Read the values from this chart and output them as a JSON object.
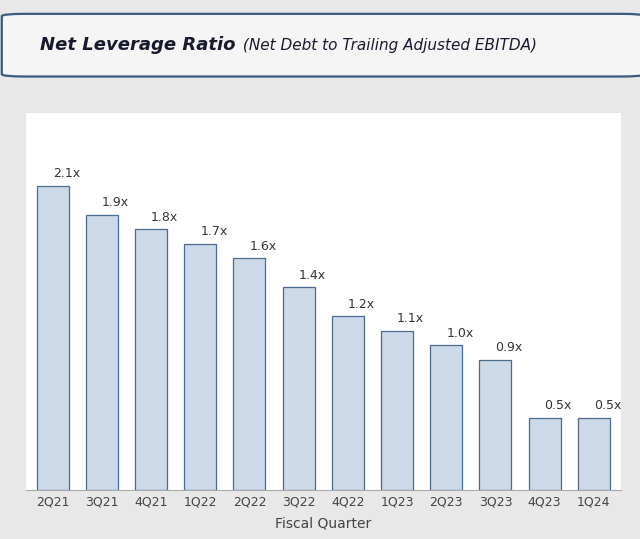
{
  "categories": [
    "2Q21",
    "3Q21",
    "4Q21",
    "1Q22",
    "2Q22",
    "3Q22",
    "4Q22",
    "1Q23",
    "2Q23",
    "3Q23",
    "4Q23",
    "1Q24"
  ],
  "values": [
    2.1,
    1.9,
    1.8,
    1.7,
    1.6,
    1.4,
    1.2,
    1.1,
    1.0,
    0.9,
    0.5,
    0.5
  ],
  "labels": [
    "2.1x",
    "1.9x",
    "1.8x",
    "1.7x",
    "1.6x",
    "1.4x",
    "1.2x",
    "1.1x",
    "1.0x",
    "0.9x",
    "0.5x",
    "0.5x"
  ],
  "bar_color": "#ccd9e8",
  "bar_edge_color": "#4a6a90",
  "title_bold": "Net Leverage Ratio",
  "title_italic": " (Net Debt to Trailing Adjusted EBITDA)",
  "xlabel": "Fiscal Quarter",
  "ylim": [
    0,
    2.6
  ],
  "figure_bg": "#e8e8e8",
  "chart_bg": "#ffffff",
  "title_box_facecolor": "#f5f5f5",
  "title_box_edgecolor": "#3a5a80",
  "label_fontsize": 9,
  "xlabel_fontsize": 10,
  "tick_fontsize": 9,
  "title_bold_fontsize": 13,
  "title_italic_fontsize": 11,
  "label_color": "#333333",
  "tick_color": "#444444",
  "spine_color": "#aaaaaa",
  "bar_width": 0.65
}
